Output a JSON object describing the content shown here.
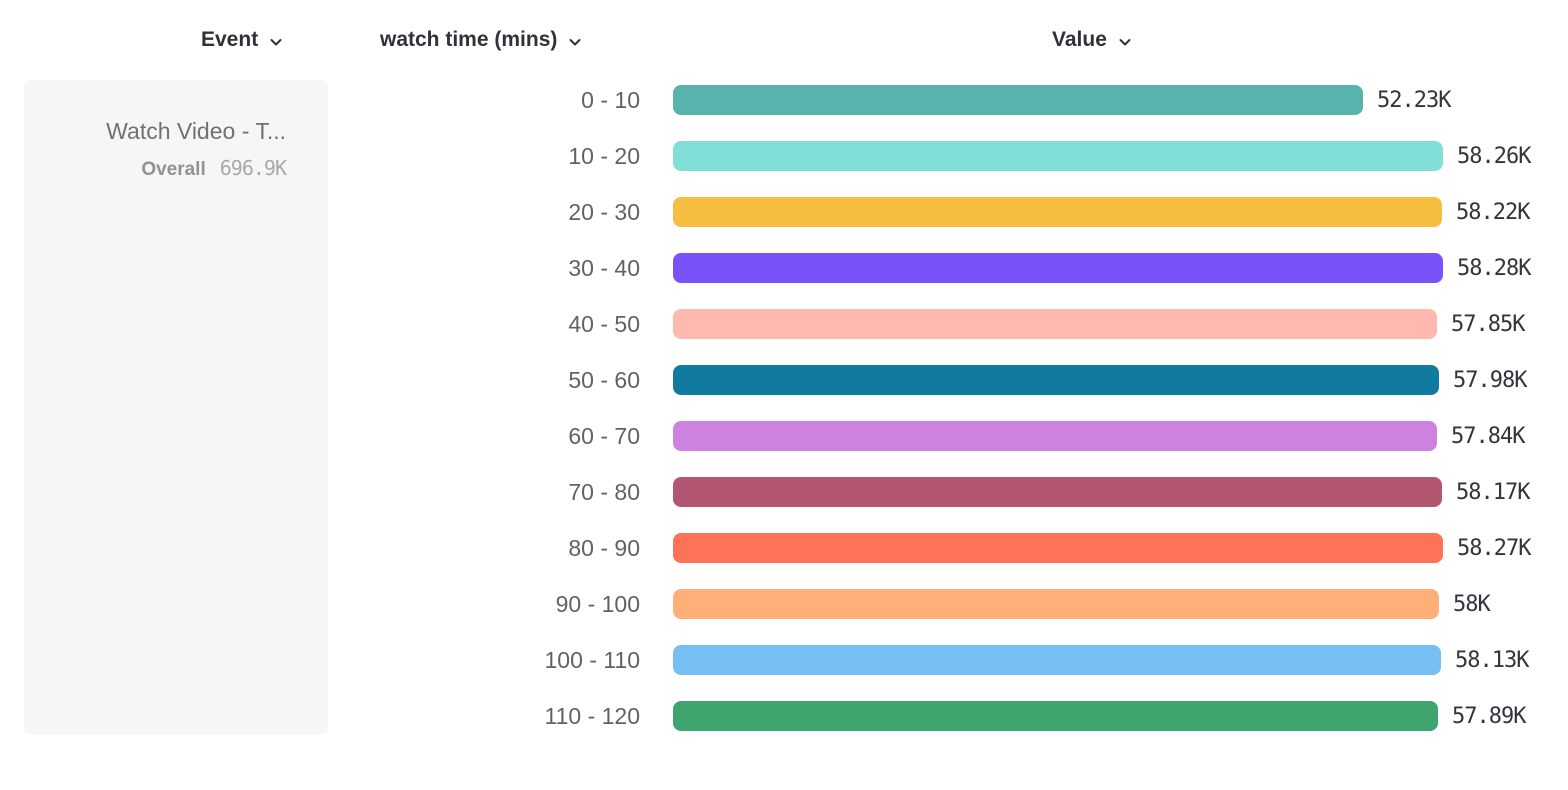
{
  "header": {
    "event_label": "Event",
    "breakdown_label": "watch time (mins)",
    "value_label": "Value"
  },
  "event_panel": {
    "title": "Watch Video - T...",
    "overall_label": "Overall",
    "overall_value": "696.9K"
  },
  "chart_data": {
    "type": "bar",
    "orientation": "horizontal",
    "title": "",
    "xlabel": "watch time (mins)",
    "ylabel": "Value",
    "xlim": [
      0,
      58280
    ],
    "grid": false,
    "categories": [
      "0 - 10",
      "10 - 20",
      "20 - 30",
      "30 - 40",
      "40 - 50",
      "50 - 60",
      "60 - 70",
      "70 - 80",
      "80 - 90",
      "90 - 100",
      "100 - 110",
      "110 - 120"
    ],
    "values": [
      52230,
      58260,
      58220,
      58280,
      57850,
      57980,
      57840,
      58170,
      58270,
      58000,
      58130,
      57890
    ],
    "value_labels": [
      "52.23K",
      "58.26K",
      "58.22K",
      "58.28K",
      "57.85K",
      "57.98K",
      "57.84K",
      "58.17K",
      "58.27K",
      "58K",
      "58.13K",
      "57.89K"
    ],
    "colors": [
      "#57b3ac",
      "#80e0d7",
      "#f7bd3f",
      "#7a52f9",
      "#ffb9ae",
      "#107aa0",
      "#cd82df",
      "#b25671",
      "#fe7257",
      "#feb078",
      "#75bff5",
      "#3ea56f"
    ]
  }
}
